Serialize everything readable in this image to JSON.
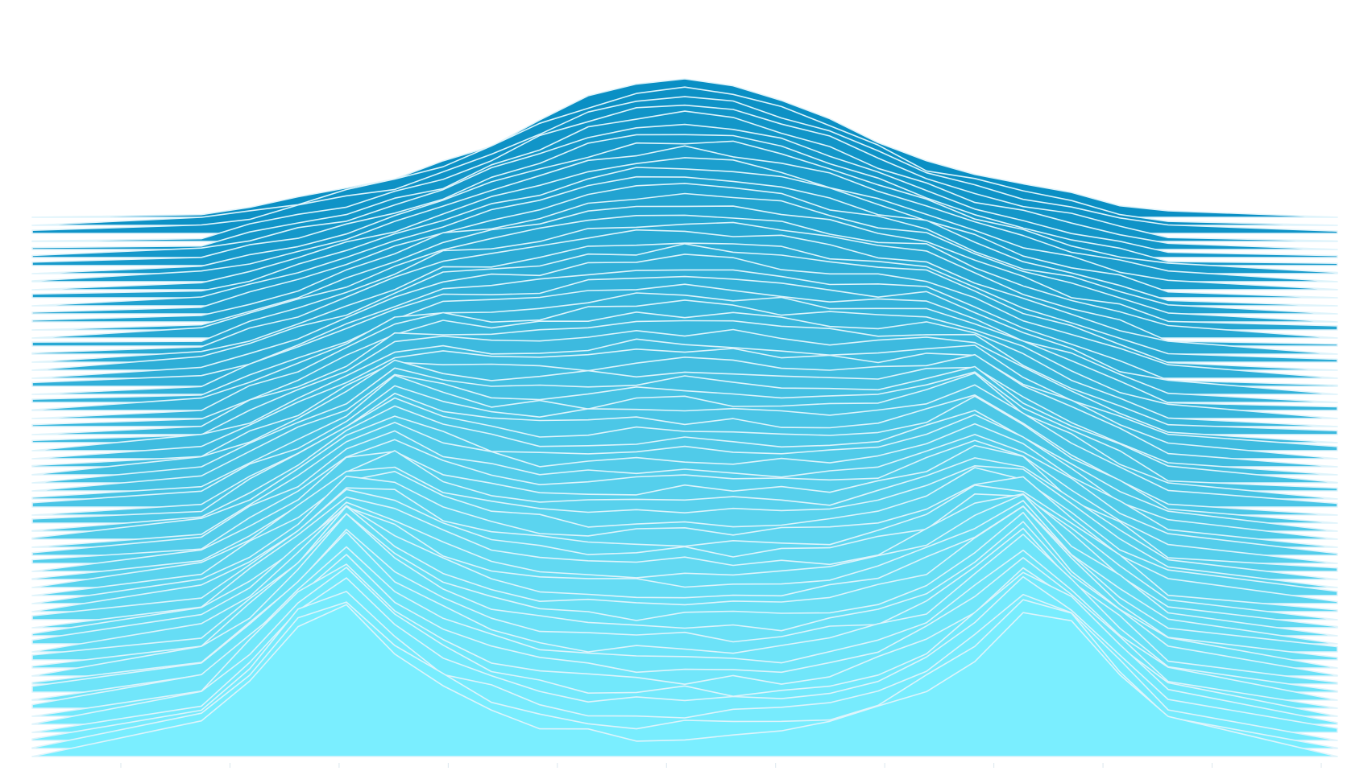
{
  "chart_data": {
    "type": "area",
    "title": "",
    "xlabel": "",
    "ylabel": "",
    "grid": false,
    "legend": "none",
    "series_count": 68,
    "x": [
      0,
      1,
      2,
      3,
      4,
      5,
      6,
      7,
      8,
      9,
      10,
      11,
      12,
      13,
      14,
      15,
      16,
      17,
      18,
      19,
      20,
      21,
      22
    ],
    "ylim": [
      0,
      1
    ],
    "profile": {
      "description_free": true,
      "edge_fraction": 0.04,
      "outer_peak": 0.42,
      "inner_floor_front": 0.05,
      "inner_floor_back": 0.16,
      "back_peak": 0.26,
      "peak_inset_front": 0.16,
      "peak_inset_back": 0.3
    },
    "colors": {
      "back": "#0a8fc4",
      "front": "#7aeeff",
      "stroke": "#dff4fb"
    }
  }
}
